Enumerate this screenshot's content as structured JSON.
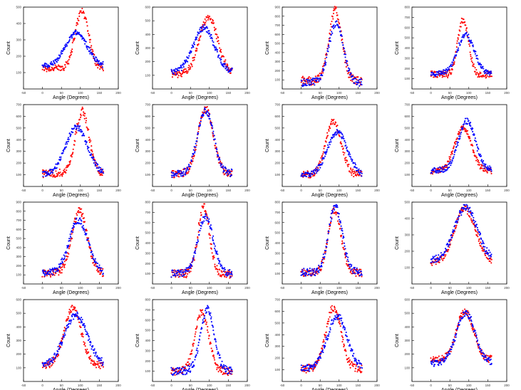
{
  "labels": {
    "xlabel": "Angle (Degrees)",
    "ylabel": "Count"
  },
  "colors": {
    "series_a": "#ff0000",
    "series_b": "#0000ff",
    "axis": "#000000",
    "background": "#ffffff"
  },
  "chart_data": [
    {
      "type": "scatter",
      "xlim": [
        -50,
        200
      ],
      "ylim": [
        0,
        500
      ],
      "xticks": [
        -50,
        0,
        50,
        100,
        150,
        200
      ],
      "yticks": [
        100,
        200,
        300,
        400,
        500
      ],
      "xlabel": "Angle (Degrees)",
      "ylabel": "Count",
      "series": [
        {
          "name": "red",
          "color": "#ff0000",
          "x_range": [
            0,
            160
          ],
          "base": 125,
          "peak": 475,
          "center": 104,
          "width": 18
        },
        {
          "name": "blue",
          "color": "#0000ff",
          "x_range": [
            0,
            160
          ],
          "base": 140,
          "peak": 345,
          "center": 90,
          "width": 28
        }
      ]
    },
    {
      "type": "scatter",
      "xlim": [
        -50,
        200
      ],
      "ylim": [
        0,
        600
      ],
      "xticks": [
        -50,
        0,
        50,
        100,
        150,
        200
      ],
      "yticks": [
        100,
        200,
        300,
        400,
        500,
        600
      ],
      "xlabel": "Angle (Degrees)",
      "ylabel": "Count",
      "series": [
        {
          "name": "red",
          "color": "#ff0000",
          "x_range": [
            0,
            160
          ],
          "base": 110,
          "peak": 530,
          "center": 98,
          "width": 24
        },
        {
          "name": "blue",
          "color": "#0000ff",
          "x_range": [
            0,
            160
          ],
          "base": 120,
          "peak": 450,
          "center": 85,
          "width": 28
        }
      ]
    },
    {
      "type": "scatter",
      "xlim": [
        -50,
        200
      ],
      "ylim": [
        0,
        900
      ],
      "xticks": [
        -50,
        0,
        50,
        100,
        150,
        200
      ],
      "yticks": [
        100,
        200,
        300,
        400,
        500,
        600,
        700,
        800,
        900
      ],
      "xlabel": "Angle (Degrees)",
      "ylabel": "Count",
      "series": [
        {
          "name": "red",
          "color": "#ff0000",
          "x_range": [
            0,
            160
          ],
          "base": 90,
          "peak": 860,
          "center": 90,
          "width": 17
        },
        {
          "name": "blue",
          "color": "#0000ff",
          "x_range": [
            0,
            160
          ],
          "base": 70,
          "peak": 720,
          "center": 92,
          "width": 19
        }
      ]
    },
    {
      "type": "scatter",
      "xlim": [
        -50,
        200
      ],
      "ylim": [
        0,
        800
      ],
      "xticks": [
        -50,
        0,
        50,
        100,
        150,
        200
      ],
      "yticks": [
        100,
        200,
        300,
        400,
        500,
        600,
        700,
        800
      ],
      "xlabel": "Angle (Degrees)",
      "ylabel": "Count",
      "series": [
        {
          "name": "red",
          "color": "#ff0000",
          "x_range": [
            0,
            160
          ],
          "base": 140,
          "peak": 680,
          "center": 85,
          "width": 14
        },
        {
          "name": "blue",
          "color": "#0000ff",
          "x_range": [
            0,
            160
          ],
          "base": 150,
          "peak": 530,
          "center": 92,
          "width": 22
        }
      ]
    },
    {
      "type": "scatter",
      "xlim": [
        -50,
        200
      ],
      "ylim": [
        0,
        700
      ],
      "xticks": [
        -50,
        0,
        50,
        100,
        150,
        200
      ],
      "yticks": [
        100,
        200,
        300,
        400,
        500,
        600,
        700
      ],
      "xlabel": "Angle (Degrees)",
      "ylabel": "Count",
      "series": [
        {
          "name": "red",
          "color": "#ff0000",
          "x_range": [
            0,
            160
          ],
          "base": 110,
          "peak": 640,
          "center": 105,
          "width": 18
        },
        {
          "name": "blue",
          "color": "#0000ff",
          "x_range": [
            0,
            160
          ],
          "base": 110,
          "peak": 510,
          "center": 90,
          "width": 28
        }
      ]
    },
    {
      "type": "scatter",
      "xlim": [
        -50,
        200
      ],
      "ylim": [
        0,
        700
      ],
      "xticks": [
        -50,
        0,
        50,
        100,
        150,
        200
      ],
      "yticks": [
        100,
        200,
        300,
        400,
        500,
        600,
        700
      ],
      "xlabel": "Angle (Degrees)",
      "ylabel": "Count",
      "series": [
        {
          "name": "red",
          "color": "#ff0000",
          "x_range": [
            0,
            160
          ],
          "base": 110,
          "peak": 660,
          "center": 90,
          "width": 20
        },
        {
          "name": "blue",
          "color": "#0000ff",
          "x_range": [
            0,
            160
          ],
          "base": 110,
          "peak": 650,
          "center": 90,
          "width": 21
        }
      ]
    },
    {
      "type": "scatter",
      "xlim": [
        -50,
        200
      ],
      "ylim": [
        0,
        700
      ],
      "xticks": [
        -50,
        0,
        50,
        100,
        150,
        200
      ],
      "yticks": [
        100,
        200,
        300,
        400,
        500,
        600,
        700
      ],
      "xlabel": "Angle (Degrees)",
      "ylabel": "Count",
      "series": [
        {
          "name": "red",
          "color": "#ff0000",
          "x_range": [
            0,
            160
          ],
          "base": 100,
          "peak": 560,
          "center": 85,
          "width": 20
        },
        {
          "name": "blue",
          "color": "#0000ff",
          "x_range": [
            0,
            160
          ],
          "base": 100,
          "peak": 470,
          "center": 95,
          "width": 26
        }
      ]
    },
    {
      "type": "scatter",
      "xlim": [
        -50,
        200
      ],
      "ylim": [
        0,
        700
      ],
      "xticks": [
        -50,
        0,
        50,
        100,
        150,
        200
      ],
      "yticks": [
        100,
        200,
        300,
        400,
        500,
        600,
        700
      ],
      "xlabel": "Angle (Degrees)",
      "ylabel": "Count",
      "series": [
        {
          "name": "red",
          "color": "#ff0000",
          "x_range": [
            0,
            160
          ],
          "base": 130,
          "peak": 510,
          "center": 85,
          "width": 22
        },
        {
          "name": "blue",
          "color": "#0000ff",
          "x_range": [
            0,
            160
          ],
          "base": 140,
          "peak": 560,
          "center": 95,
          "width": 22
        }
      ]
    },
    {
      "type": "scatter",
      "xlim": [
        -50,
        200
      ],
      "ylim": [
        0,
        900
      ],
      "xticks": [
        -50,
        0,
        50,
        100,
        150,
        200
      ],
      "yticks": [
        100,
        200,
        300,
        400,
        500,
        600,
        700,
        800,
        900
      ],
      "xlabel": "Angle (Degrees)",
      "ylabel": "Count",
      "series": [
        {
          "name": "red",
          "color": "#ff0000",
          "x_range": [
            0,
            160
          ],
          "base": 120,
          "peak": 800,
          "center": 98,
          "width": 20
        },
        {
          "name": "blue",
          "color": "#0000ff",
          "x_range": [
            0,
            160
          ],
          "base": 120,
          "peak": 700,
          "center": 95,
          "width": 25
        }
      ]
    },
    {
      "type": "scatter",
      "xlim": [
        -50,
        200
      ],
      "ylim": [
        0,
        800
      ],
      "xticks": [
        -50,
        0,
        50,
        100,
        150,
        200
      ],
      "yticks": [
        100,
        200,
        300,
        400,
        500,
        600,
        700,
        800
      ],
      "xlabel": "Angle (Degrees)",
      "ylabel": "Count",
      "series": [
        {
          "name": "red",
          "color": "#ff0000",
          "x_range": [
            0,
            160
          ],
          "base": 100,
          "peak": 760,
          "center": 85,
          "width": 15
        },
        {
          "name": "blue",
          "color": "#0000ff",
          "x_range": [
            0,
            160
          ],
          "base": 100,
          "peak": 660,
          "center": 90,
          "width": 20
        }
      ]
    },
    {
      "type": "scatter",
      "xlim": [
        -50,
        200
      ],
      "ylim": [
        0,
        800
      ],
      "xticks": [
        -50,
        0,
        50,
        100,
        150,
        200
      ],
      "yticks": [
        100,
        200,
        300,
        400,
        500,
        600,
        700,
        800
      ],
      "xlabel": "Angle (Degrees)",
      "ylabel": "Count",
      "series": [
        {
          "name": "red",
          "color": "#ff0000",
          "x_range": [
            0,
            160
          ],
          "base": 110,
          "peak": 720,
          "center": 88,
          "width": 17
        },
        {
          "name": "blue",
          "color": "#0000ff",
          "x_range": [
            0,
            160
          ],
          "base": 110,
          "peak": 760,
          "center": 90,
          "width": 18
        }
      ]
    },
    {
      "type": "scatter",
      "xlim": [
        -50,
        200
      ],
      "ylim": [
        0,
        500
      ],
      "xticks": [
        -50,
        0,
        50,
        100,
        150,
        200
      ],
      "yticks": [
        100,
        200,
        300,
        400,
        500
      ],
      "xlabel": "Angle (Degrees)",
      "ylabel": "Count",
      "series": [
        {
          "name": "red",
          "color": "#ff0000",
          "x_range": [
            0,
            160
          ],
          "base": 130,
          "peak": 460,
          "center": 90,
          "width": 28
        },
        {
          "name": "blue",
          "color": "#0000ff",
          "x_range": [
            0,
            160
          ],
          "base": 140,
          "peak": 470,
          "center": 92,
          "width": 30
        }
      ]
    },
    {
      "type": "scatter",
      "xlim": [
        -50,
        200
      ],
      "ylim": [
        0,
        600
      ],
      "xticks": [
        -50,
        0,
        50,
        100,
        150,
        200
      ],
      "yticks": [
        100,
        200,
        300,
        400,
        500,
        600
      ],
      "xlabel": "Angle (Degrees)",
      "ylabel": "Count",
      "series": [
        {
          "name": "red",
          "color": "#ff0000",
          "x_range": [
            0,
            160
          ],
          "base": 120,
          "peak": 540,
          "center": 80,
          "width": 22
        },
        {
          "name": "blue",
          "color": "#0000ff",
          "x_range": [
            0,
            160
          ],
          "base": 120,
          "peak": 490,
          "center": 88,
          "width": 30
        }
      ]
    },
    {
      "type": "scatter",
      "xlim": [
        -50,
        200
      ],
      "ylim": [
        0,
        800
      ],
      "xticks": [
        -50,
        0,
        50,
        100,
        150,
        200
      ],
      "yticks": [
        100,
        200,
        300,
        400,
        500,
        600,
        700,
        800
      ],
      "xlabel": "Angle (Degrees)",
      "ylabel": "Count",
      "series": [
        {
          "name": "red",
          "color": "#ff0000",
          "x_range": [
            0,
            160
          ],
          "base": 100,
          "peak": 680,
          "center": 80,
          "width": 18
        },
        {
          "name": "blue",
          "color": "#0000ff",
          "x_range": [
            0,
            160
          ],
          "base": 100,
          "peak": 700,
          "center": 95,
          "width": 18
        }
      ]
    },
    {
      "type": "scatter",
      "xlim": [
        -50,
        200
      ],
      "ylim": [
        0,
        700
      ],
      "xticks": [
        -50,
        0,
        50,
        100,
        150,
        200
      ],
      "yticks": [
        100,
        200,
        300,
        400,
        500,
        600,
        700
      ],
      "xlabel": "Angle (Degrees)",
      "ylabel": "Count",
      "series": [
        {
          "name": "red",
          "color": "#ff0000",
          "x_range": [
            0,
            160
          ],
          "base": 110,
          "peak": 630,
          "center": 85,
          "width": 20
        },
        {
          "name": "blue",
          "color": "#0000ff",
          "x_range": [
            0,
            160
          ],
          "base": 110,
          "peak": 560,
          "center": 95,
          "width": 26
        }
      ]
    },
    {
      "type": "scatter",
      "xlim": [
        -50,
        200
      ],
      "ylim": [
        0,
        600
      ],
      "xticks": [
        -50,
        0,
        50,
        100,
        150,
        200
      ],
      "yticks": [
        100,
        200,
        300,
        400,
        500,
        600
      ],
      "xlabel": "Angle (Degrees)",
      "ylabel": "Count",
      "series": [
        {
          "name": "red",
          "color": "#ff0000",
          "x_range": [
            0,
            160
          ],
          "base": 160,
          "peak": 520,
          "center": 90,
          "width": 22
        },
        {
          "name": "blue",
          "color": "#0000ff",
          "x_range": [
            0,
            160
          ],
          "base": 130,
          "peak": 500,
          "center": 92,
          "width": 25
        }
      ]
    }
  ]
}
